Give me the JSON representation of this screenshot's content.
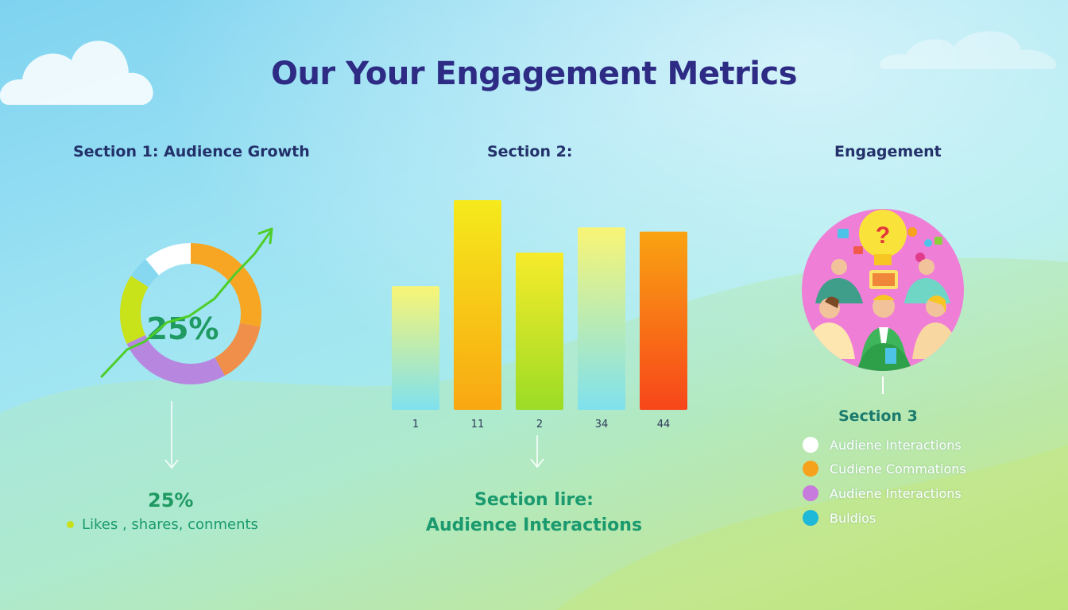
{
  "title": "Our Your Engagement Metrics",
  "section1": {
    "heading": "Section 1: Audience Growth",
    "donut_label": "25%",
    "stat": "25%",
    "bullet": "Likes , shares, conments"
  },
  "section2": {
    "heading": "Section 2:",
    "caption_line1": "Section lire:",
    "caption_line2": "Audience Interactions"
  },
  "section3": {
    "heading": "Engagement",
    "sub_heading": "Section 3",
    "legend": [
      {
        "label": "Audiene Interactions",
        "color": "#ffffff"
      },
      {
        "label": "Cudiene Commations",
        "color": "#f7a21c"
      },
      {
        "label": "Audiene Interactions",
        "color": "#c77bdc"
      },
      {
        "label": "Buldios",
        "color": "#1eb8d8"
      }
    ]
  },
  "icons": {
    "cloud_left": "cloud-icon",
    "cloud_right": "cloud-icon",
    "trend_arrow": "trend-arrow-icon",
    "down_arrow": "arrow-down-icon",
    "illustration": "community-illustration-icon"
  },
  "chart_data": [
    {
      "type": "pie",
      "variant": "donut",
      "center_label": "25%",
      "segments": [
        {
          "value": 28,
          "color": "#f6a623"
        },
        {
          "value": 14,
          "color": "#ef8f4a"
        },
        {
          "value": 26,
          "color": "#b787e0"
        },
        {
          "value": 16,
          "color": "#c9e31a"
        },
        {
          "value": 5,
          "color": "#86d7f0"
        },
        {
          "value": 11,
          "color": "#ffffff"
        }
      ]
    },
    {
      "type": "bar",
      "categories": [
        "1",
        "11",
        "2",
        "34",
        "44"
      ],
      "values": [
        59,
        100,
        75,
        87,
        85
      ],
      "ylim": [
        0,
        100
      ],
      "colors": [
        [
          "#f9f575",
          "#7fe1ee"
        ],
        [
          "#f5ea1c",
          "#f9a712"
        ],
        [
          "#f7eb2a",
          "#9cdc26"
        ],
        [
          "#f9f575",
          "#7fe1ee"
        ],
        [
          "#f9a312",
          "#f7461a"
        ]
      ]
    }
  ]
}
